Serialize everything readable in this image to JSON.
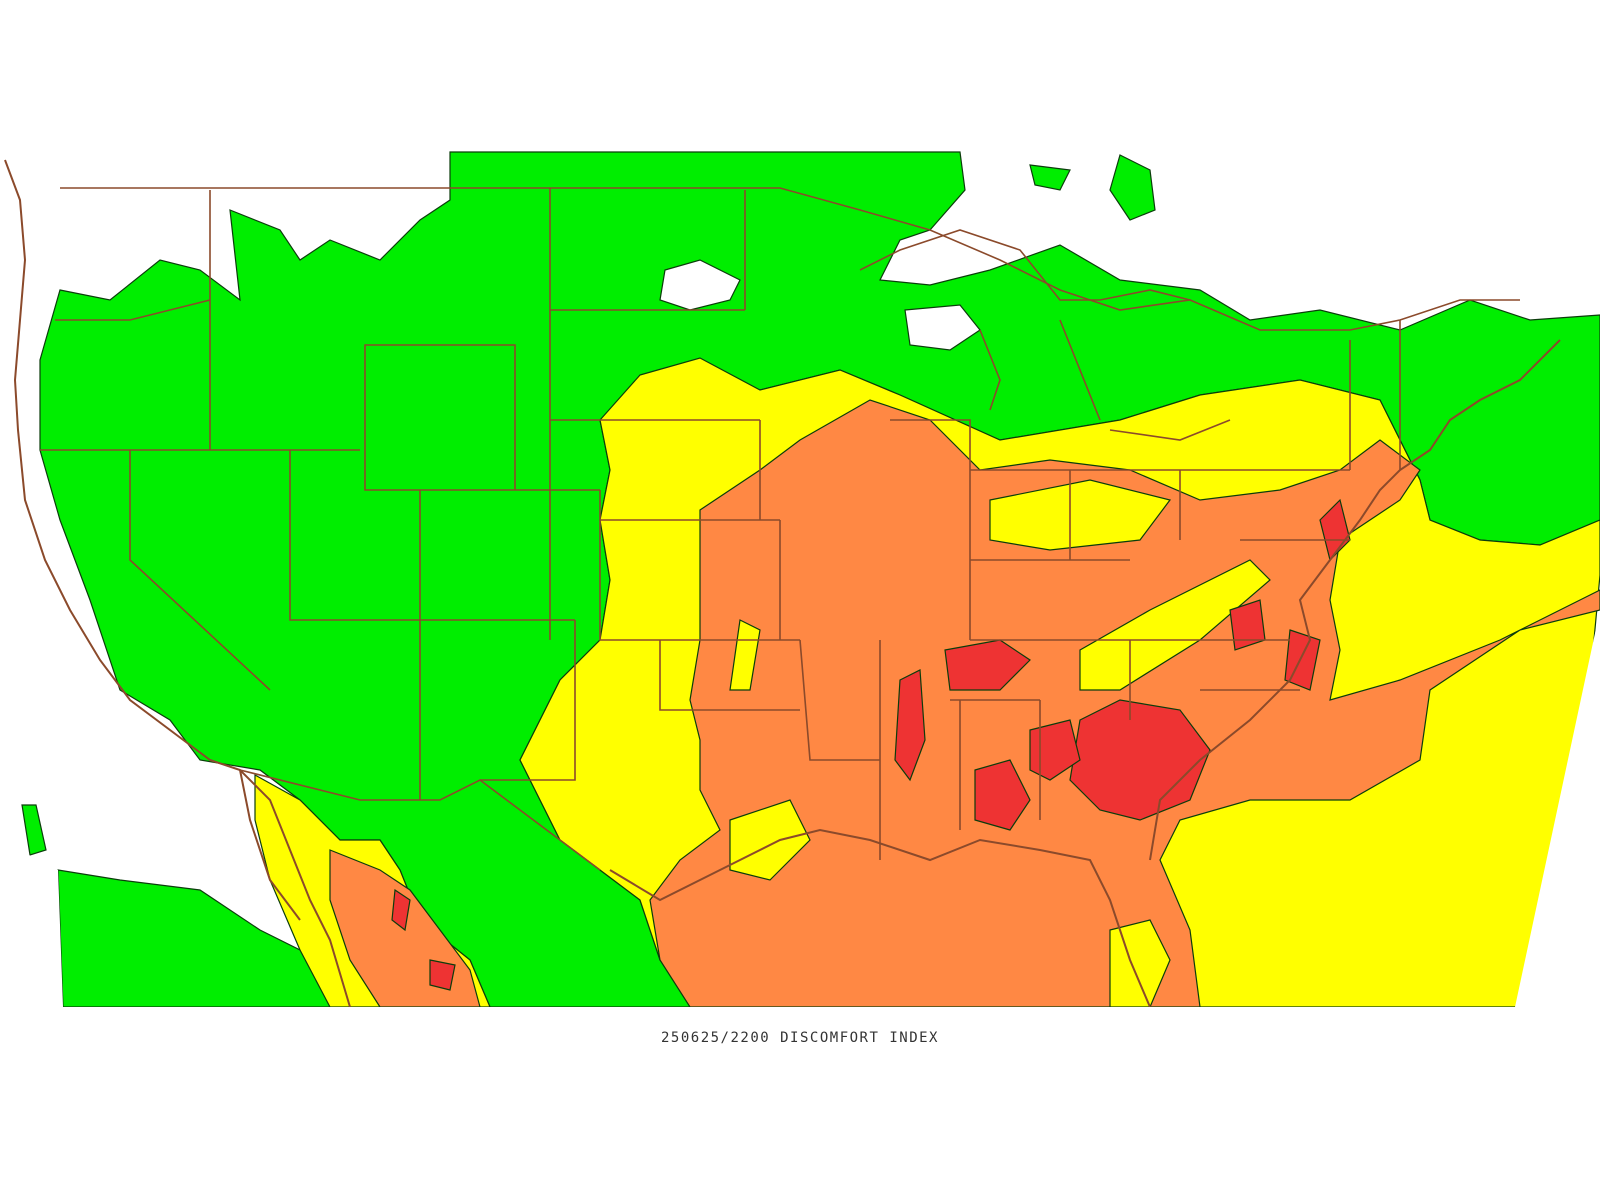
{
  "caption": "250625/2200 DISCOMFORT INDEX",
  "legend_colors": {
    "green": "#00ee00",
    "yellow": "#ffff00",
    "orange": "#ff8844",
    "red": "#ee3333",
    "boundary": "#8b4a2b"
  }
}
